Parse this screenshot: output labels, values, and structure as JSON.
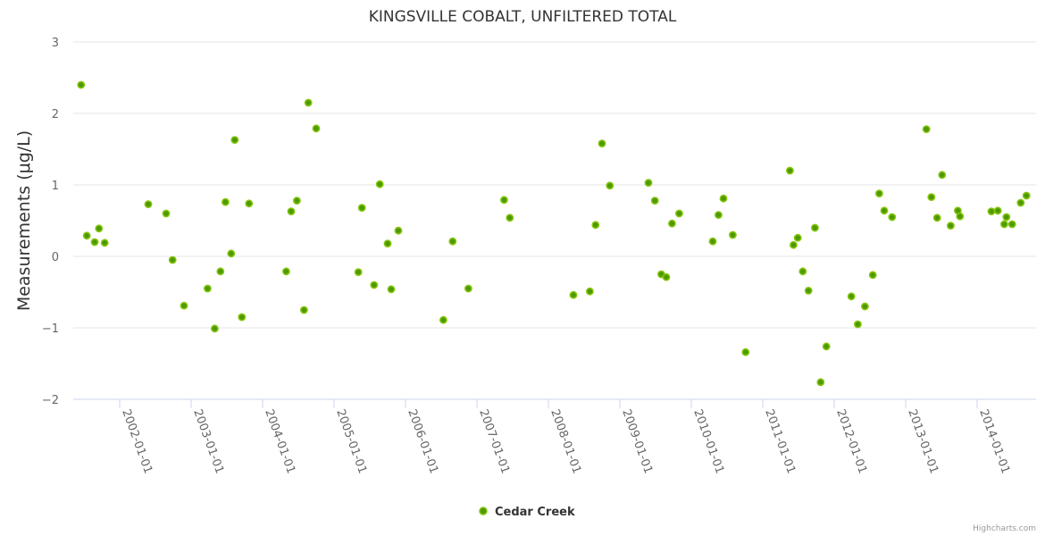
{
  "chart_data": {
    "type": "scatter",
    "title": "KINGSVILLE COBALT, UNFILTERED TOTAL",
    "xlabel": "",
    "ylabel": "Measurements (μg/L)",
    "ylim": [
      -2,
      3
    ],
    "yticks": [
      3,
      2,
      1,
      0,
      -1,
      -2
    ],
    "ytick_labels": [
      "3",
      "2",
      "1",
      "0",
      "−1",
      "−2"
    ],
    "xlim": [
      2001.4,
      2014.85
    ],
    "xticks": [
      2002,
      2003,
      2004,
      2005,
      2006,
      2007,
      2008,
      2009,
      2010,
      2011,
      2012,
      2013,
      2014
    ],
    "xtick_labels": [
      "2002-01-01",
      "2003-01-01",
      "2004-01-01",
      "2005-01-01",
      "2006-01-01",
      "2007-01-01",
      "2008-01-01",
      "2009-01-01",
      "2010-01-01",
      "2011-01-01",
      "2012-01-01",
      "2013-01-01",
      "2014-01-01"
    ],
    "grid": true,
    "legend_position": "bottom-center",
    "credit": "Highcharts.com",
    "colors": {
      "marker_fill": "#4c9a00",
      "marker_stroke": "#86c40a",
      "grid": "#e6e6e6"
    },
    "series": [
      {
        "name": "Cedar Creek",
        "x": [
          2001.46,
          2001.54,
          2001.65,
          2001.71,
          2001.79,
          2002.4,
          2002.65,
          2002.74,
          2002.9,
          2003.23,
          2003.33,
          2003.41,
          2003.48,
          2003.56,
          2003.61,
          2003.71,
          2003.81,
          2004.33,
          2004.4,
          2004.48,
          2004.58,
          2004.64,
          2004.75,
          2005.34,
          2005.39,
          2005.56,
          2005.64,
          2005.75,
          2005.8,
          2005.9,
          2006.53,
          2006.66,
          2006.88,
          2007.38,
          2007.46,
          2008.35,
          2008.58,
          2008.66,
          2008.75,
          2008.86,
          2009.4,
          2009.49,
          2009.58,
          2009.65,
          2009.73,
          2009.83,
          2010.3,
          2010.38,
          2010.45,
          2010.58,
          2010.76,
          2011.38,
          2011.43,
          2011.49,
          2011.56,
          2011.64,
          2011.73,
          2011.81,
          2011.89,
          2012.24,
          2012.33,
          2012.43,
          2012.54,
          2012.63,
          2012.7,
          2012.81,
          2013.29,
          2013.36,
          2013.44,
          2013.51,
          2013.63,
          2013.73,
          2013.76,
          2014.2,
          2014.29,
          2014.38,
          2014.41,
          2014.49,
          2014.61,
          2014.69
        ],
        "y": [
          2.4,
          0.29,
          0.2,
          0.39,
          0.19,
          0.73,
          0.6,
          -0.05,
          -0.69,
          -0.45,
          -1.01,
          -0.21,
          0.76,
          0.04,
          1.63,
          -0.85,
          0.74,
          -0.21,
          0.63,
          0.78,
          -0.75,
          2.15,
          1.79,
          -0.22,
          0.68,
          -0.4,
          1.01,
          0.18,
          -0.46,
          0.36,
          -0.89,
          0.21,
          -0.45,
          0.79,
          0.54,
          -0.54,
          -0.49,
          0.44,
          1.58,
          0.99,
          1.03,
          0.78,
          -0.25,
          -0.29,
          0.46,
          0.6,
          0.21,
          0.58,
          0.81,
          0.3,
          -1.34,
          1.2,
          0.16,
          0.26,
          -0.21,
          -0.48,
          0.4,
          -1.76,
          -1.26,
          -0.56,
          -0.95,
          -0.7,
          -0.26,
          0.88,
          0.64,
          0.55,
          1.78,
          0.83,
          0.54,
          1.14,
          0.43,
          0.64,
          0.56,
          0.63,
          0.64,
          0.45,
          0.55,
          0.45,
          0.75,
          0.85
        ]
      }
    ]
  }
}
